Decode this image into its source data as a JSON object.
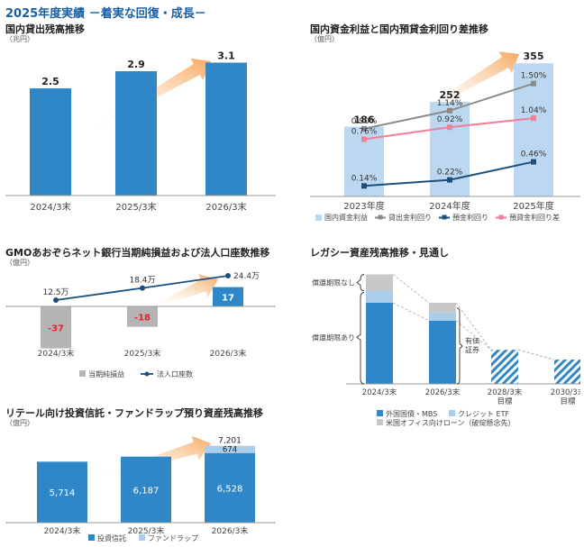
{
  "page": {
    "title": "2025年度実績 －着実な回復・成長－"
  },
  "colors": {
    "blue": "#2f87c7",
    "light_blue": "#a9cdeb",
    "pale_blue": "#bcd8f0",
    "gray": "#b5b5b5",
    "pink": "#ef7f9a",
    "dark_gray": "#8a8a8a",
    "navy": "#1d4f7c",
    "arrow": "#f6a85e"
  },
  "panels": {
    "loans": {
      "title": "国内貸出残高推移",
      "unit": "（兆円）"
    },
    "interest": {
      "title": "国内資金利益と国内預貸金利回り差推移",
      "unit": "（億円）"
    },
    "gmo": {
      "title": "GMOあおぞらネット銀行当期純損益および法人口座数推移",
      "unit": "（億円）"
    },
    "legacy": {
      "title": "レガシー資産残高推移・見通し",
      "bracket_top": "償還期限なし",
      "bracket_bottom": "償還期限あり",
      "securities_label_1": "有価",
      "securities_label_2": "証券"
    },
    "retail": {
      "title": "リテール向け投資信託・ファンドラップ預り資産残高推移",
      "unit": "（億円）"
    }
  },
  "chart_data": [
    {
      "id": "loans",
      "type": "bar",
      "title": "国内貸出残高推移",
      "categories": [
        "2024/3末",
        "2025/3末",
        "2026/3末"
      ],
      "values": [
        2.5,
        2.9,
        3.1
      ],
      "value_labels": [
        "2.5",
        "2.9",
        "3.1"
      ],
      "ylim": [
        0,
        3.3
      ]
    },
    {
      "id": "interest",
      "type": "bar",
      "title": "国内資金利益と国内預貸金利回り差推移",
      "categories": [
        "2023年度",
        "2024年度",
        "2025年度"
      ],
      "series": [
        {
          "name": "国内資金利益",
          "type": "bar",
          "values": [
            186,
            252,
            355
          ],
          "labels": [
            "186",
            "252",
            "355"
          ]
        },
        {
          "name": "貸出金利回り",
          "type": "line",
          "values": [
            0.9,
            1.14,
            1.5
          ],
          "labels": [
            "0.90%",
            "1.14%",
            "1.50%"
          ]
        },
        {
          "name": "預金利回り",
          "type": "line",
          "values": [
            0.14,
            0.22,
            0.46
          ],
          "labels": [
            "0.14%",
            "0.22%",
            "0.46%"
          ]
        },
        {
          "name": "預貸金利回り差",
          "type": "line",
          "values": [
            0.76,
            0.92,
            1.04
          ],
          "labels": [
            "0.76%",
            "0.92%",
            "1.04%"
          ]
        }
      ],
      "ylim_bar": [
        0,
        370
      ],
      "ylim_rate": [
        0,
        1.7
      ]
    },
    {
      "id": "gmo",
      "type": "bar",
      "title": "GMOあおぞらネット銀行当期純損益および法人口座数推移",
      "categories": [
        "2024/3末",
        "2025/3末",
        "2026/3末"
      ],
      "series": [
        {
          "name": "当期純損益",
          "type": "bar",
          "values": [
            -37,
            -18,
            17
          ],
          "labels": [
            "-37",
            "-18",
            "17"
          ]
        },
        {
          "name": "法人口座数",
          "type": "line",
          "values": [
            12.5,
            18.4,
            24.4
          ],
          "labels": [
            "12.5万",
            "18.4万",
            "24.4万"
          ]
        }
      ],
      "ylim_bar": [
        -45,
        25
      ]
    },
    {
      "id": "legacy",
      "type": "bar",
      "title": "レガシー資産残高推移・見通し",
      "categories": [
        "2024/3末",
        "2026/3末",
        "2028/3末 目標",
        "2030/3末 目標"
      ],
      "category_lines": [
        [
          "2024/3末"
        ],
        [
          "2026/3末"
        ],
        [
          "2028/3末",
          "目標"
        ],
        [
          "2030/3末",
          "目標"
        ]
      ],
      "series": [
        {
          "name": "外国国債・MBS",
          "values": [
            100,
            78,
            42,
            30
          ]
        },
        {
          "name": "クレジット ETF",
          "values": [
            15,
            10,
            0,
            0
          ]
        },
        {
          "name": "米国オフィス向けローン（破綻懸念先）",
          "values": [
            20,
            12,
            0,
            0
          ]
        }
      ]
    },
    {
      "id": "retail",
      "type": "bar",
      "stacked": true,
      "title": "リテール向け投資信託・ファンドラップ預り資産残高推移",
      "categories": [
        "2024/3末",
        "2025/3末",
        "2026/3末"
      ],
      "series": [
        {
          "name": "投資信託",
          "values": [
            5714,
            6187,
            6528
          ],
          "labels": [
            "5,714",
            "6,187",
            "6,528"
          ]
        },
        {
          "name": "ファンドラップ",
          "values": [
            0,
            0,
            674
          ],
          "labels": [
            "",
            "",
            "674"
          ]
        }
      ],
      "totals": [
        "",
        "",
        "7,201"
      ],
      "ylim": [
        0,
        7600
      ]
    }
  ]
}
